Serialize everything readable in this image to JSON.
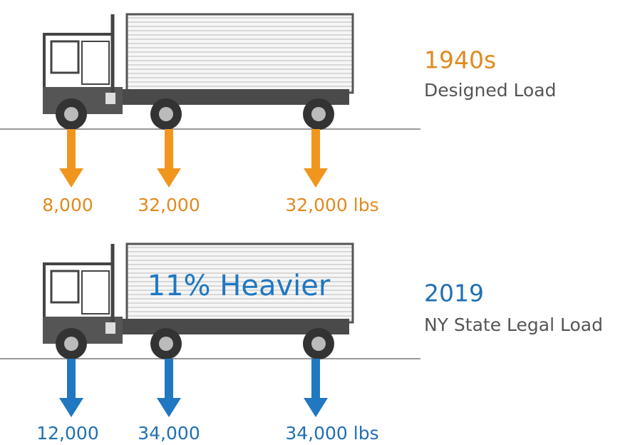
{
  "panels": [
    {
      "title": "1940s",
      "subtitle": "Designed Load",
      "loads": [
        "8,000",
        "32,000",
        "32,000 lbs"
      ]
    },
    {
      "title": "2019",
      "subtitle": "NY State Legal Load",
      "badge": "11% Heavier",
      "loads": [
        "12,000",
        "34,000",
        "34,000 lbs"
      ]
    }
  ]
}
